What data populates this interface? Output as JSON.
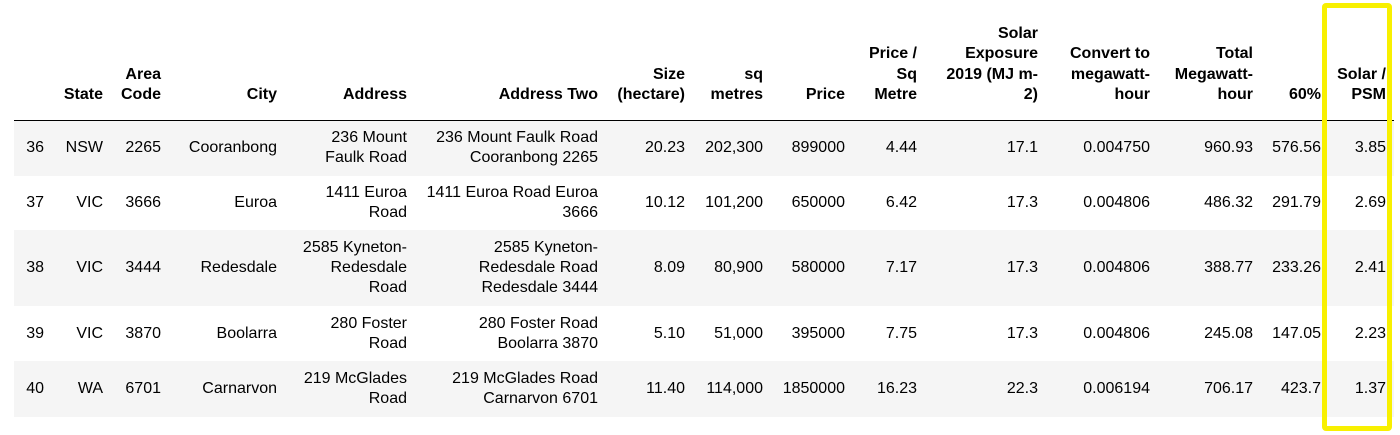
{
  "table": {
    "columns": [
      "",
      "State",
      "Area Code",
      "City",
      "Address",
      "Address Two",
      "Size (hectare)",
      "sq metres",
      "Price",
      "Price / Sq Metre",
      "Solar Exposure 2019 (MJ m-2)",
      "Convert to megawatt-hour",
      "Total Megawatt-hour",
      "60%",
      "Solar / PSM"
    ],
    "rows": [
      [
        "36",
        "NSW",
        "2265",
        "Cooranbong",
        "236 Mount Faulk Road",
        "236 Mount Faulk Road Cooranbong 2265",
        "20.23",
        "202,300",
        "899000",
        "4.44",
        "17.1",
        "0.004750",
        "960.93",
        "576.56",
        "3.85"
      ],
      [
        "37",
        "VIC",
        "3666",
        "Euroa",
        "1411 Euroa Road",
        "1411 Euroa Road Euroa 3666",
        "10.12",
        "101,200",
        "650000",
        "6.42",
        "17.3",
        "0.004806",
        "486.32",
        "291.79",
        "2.69"
      ],
      [
        "38",
        "VIC",
        "3444",
        "Redesdale",
        "2585 Kyneton-Redesdale Road",
        "2585 Kyneton-Redesdale Road Redesdale 3444",
        "8.09",
        "80,900",
        "580000",
        "7.17",
        "17.3",
        "0.004806",
        "388.77",
        "233.26",
        "2.41"
      ],
      [
        "39",
        "VIC",
        "3870",
        "Boolarra",
        "280 Foster Road",
        "280 Foster Road Boolarra 3870",
        "5.10",
        "51,000",
        "395000",
        "7.75",
        "17.3",
        "0.004806",
        "245.08",
        "147.05",
        "2.23"
      ],
      [
        "40",
        "WA",
        "6701",
        "Carnarvon",
        "219 McGlades Road",
        "219 McGlades Road Carnarvon 6701",
        "11.40",
        "114,000",
        "1850000",
        "16.23",
        "22.3",
        "0.006194",
        "706.17",
        "423.7",
        "1.37"
      ]
    ]
  },
  "highlight": {
    "column": "Solar / PSM",
    "color": "#f8f000"
  },
  "colors": {
    "row_stripe": "#f5f5f5",
    "background": "#ffffff",
    "text": "#000000"
  }
}
